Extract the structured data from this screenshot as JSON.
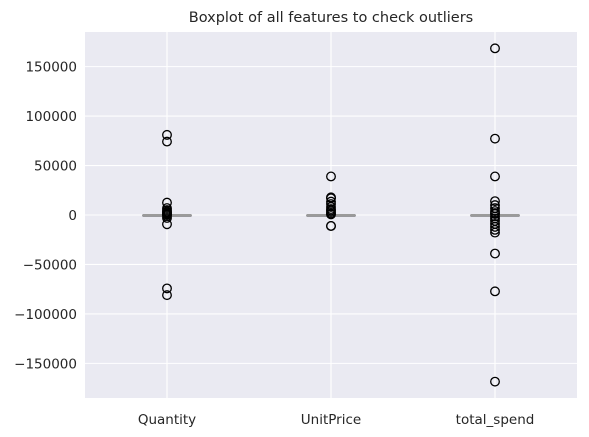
{
  "chart_data": {
    "type": "boxplot",
    "title": "Boxplot of all features to check outliers",
    "xlabel": "",
    "ylabel": "",
    "ylim": [
      -185000,
      185000
    ],
    "yticks": [
      -150000,
      -100000,
      -50000,
      0,
      50000,
      100000,
      150000
    ],
    "ytick_labels": [
      "−150000",
      "−100000",
      "−50000",
      "0",
      "50000",
      "100000",
      "150000"
    ],
    "grid": true,
    "categories": [
      "Quantity",
      "UnitPrice",
      "total_spend"
    ],
    "series": [
      {
        "category": "Quantity",
        "box": {
          "q1": 1,
          "median": 3,
          "q3": 10,
          "whisker_low": -12,
          "whisker_high": 23
        },
        "outliers": [
          81000,
          74200,
          12500,
          7000,
          5000,
          3500,
          2500,
          1500,
          800,
          400,
          -1000,
          -3000,
          -9360,
          -74200,
          -81000
        ]
      },
      {
        "category": "UnitPrice",
        "box": {
          "q1": 1.25,
          "median": 2.1,
          "q3": 4.13,
          "whisker_low": -3,
          "whisker_high": 8.5
        },
        "outliers": [
          38970,
          17836,
          16888,
          13541,
          11062,
          8142,
          6000,
          4500,
          3000,
          1500,
          600,
          -11062,
          -11062
        ]
      },
      {
        "category": "total_spend",
        "box": {
          "q1": 4.2,
          "median": 11.8,
          "q3": 19.8,
          "whisker_low": -19,
          "whisker_high": 43
        },
        "outliers": [
          168470,
          77184,
          38970,
          14000,
          10000,
          7000,
          4000,
          2000,
          1000,
          -1500,
          -3500,
          -6000,
          -9000,
          -12000,
          -15000,
          -17800,
          -38970,
          -77184,
          -168470
        ]
      }
    ]
  },
  "colors": {
    "plot_background": "#eaeaf2",
    "grid": "#ffffff",
    "box": "#444444",
    "median": "#9a9a9a",
    "outlier": "#000000"
  }
}
